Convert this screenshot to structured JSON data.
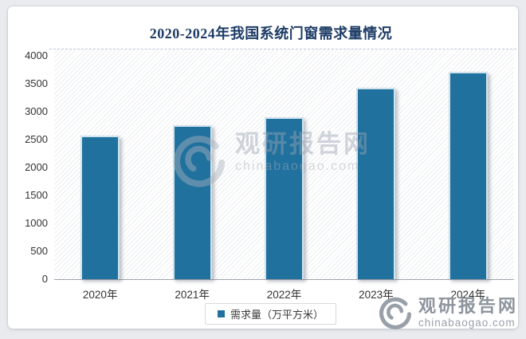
{
  "title": {
    "text": "2020-2024年我国系统门窗需求量情况"
  },
  "chart_data": {
    "type": "bar",
    "title": "2020-2024年我国系统门窗需求量情况",
    "categories": [
      "2020年",
      "2021年",
      "2022年",
      "2023年",
      "2024年"
    ],
    "series": [
      {
        "name": "需求量（万平方米）",
        "values": [
          2570,
          2750,
          2900,
          3430,
          3720
        ]
      }
    ],
    "xlabel": "",
    "ylabel": "",
    "ylim": [
      0,
      4000
    ],
    "yticks": [
      0,
      500,
      1000,
      1500,
      2000,
      2500,
      3000,
      3500,
      4000
    ],
    "grid": false,
    "legend_position": "bottom",
    "bar_color": "#21719e"
  },
  "legend": {
    "label": "需求量（万平方米）"
  },
  "watermark": {
    "site_name": "观研报告网",
    "site_domain": "chinabaogao.com"
  },
  "footer": {
    "site_name": "观研报告网",
    "site_domain": "chinabaogao.com"
  },
  "colors": {
    "bar": "#21719e",
    "bar_border": "#cfe3ee",
    "title": "#1e3c66",
    "page_background": "#e9ebef",
    "card_background": "#ffffff",
    "axis_text": "#333333",
    "logo_gray": "#8d949d"
  }
}
